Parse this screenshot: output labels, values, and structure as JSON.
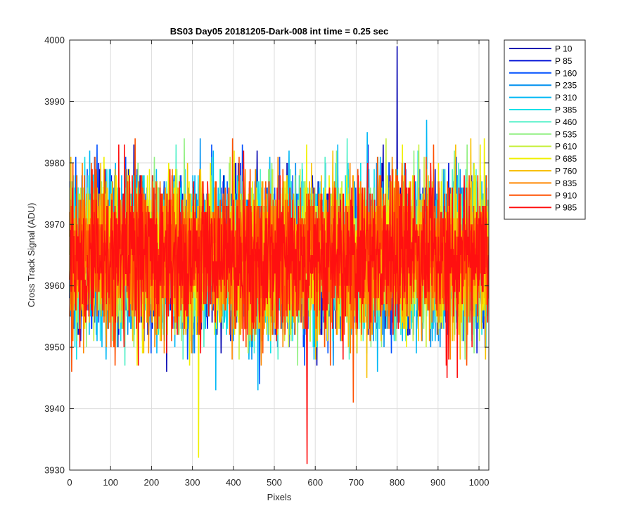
{
  "chart_data": {
    "type": "line",
    "title": "BS03 Day05 20181205-Dark-008 int time = 0.25 sec",
    "xlabel": "Pixels",
    "ylabel": "Cross Track Signal (ADU)",
    "xlim": [
      0,
      1024
    ],
    "ylim": [
      3930,
      4000
    ],
    "xticks": [
      0,
      100,
      200,
      300,
      400,
      500,
      600,
      700,
      800,
      900,
      1000
    ],
    "xtick_labels": [
      "0",
      "100",
      "200",
      "300",
      "400",
      "500",
      "600",
      "700",
      "800",
      "900",
      "1000"
    ],
    "yticks": [
      3930,
      3940,
      3950,
      3960,
      3970,
      3980,
      3990,
      4000
    ],
    "ytick_labels": [
      "3930",
      "3940",
      "3950",
      "3960",
      "3970",
      "3980",
      "3990",
      "4000"
    ],
    "grid": true,
    "legend_position": "outside-right",
    "noise_model": {
      "x_start": 0,
      "x_end": 1023,
      "mean": 3965,
      "std": 6,
      "min": 3931,
      "max": 3999
    },
    "series": [
      {
        "name": "P 10",
        "color": "#0000b0"
      },
      {
        "name": "P 85",
        "color": "#0010d8"
      },
      {
        "name": "P 160",
        "color": "#0050ff"
      },
      {
        "name": "P 235",
        "color": "#0090f0"
      },
      {
        "name": "P 310",
        "color": "#00b8f5"
      },
      {
        "name": "P 385",
        "color": "#10e0e8"
      },
      {
        "name": "P 460",
        "color": "#50f0c8"
      },
      {
        "name": "P 535",
        "color": "#90f080"
      },
      {
        "name": "P 610",
        "color": "#c8f040"
      },
      {
        "name": "P 685",
        "color": "#f0f000"
      },
      {
        "name": "P 760",
        "color": "#f8c000"
      },
      {
        "name": "P 835",
        "color": "#ff8800"
      },
      {
        "name": "P 910",
        "color": "#ff5000"
      },
      {
        "name": "P 985",
        "color": "#ff1010"
      }
    ],
    "annotations": [
      {
        "series": "P 10",
        "x": 800,
        "y": 3999
      },
      {
        "series": "P 985",
        "x": 580,
        "y": 3931
      },
      {
        "series": "P 685",
        "x": 315,
        "y": 3932
      }
    ]
  }
}
